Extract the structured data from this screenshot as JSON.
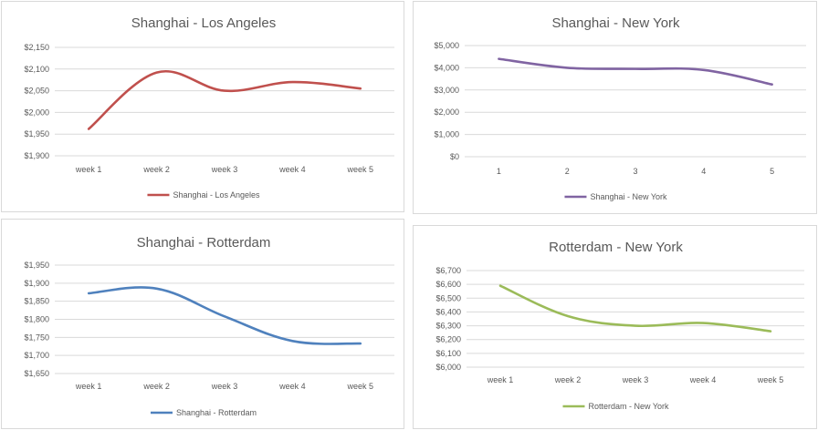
{
  "chart_data": [
    {
      "type": "line",
      "title": "Shanghai - Los Angeles",
      "categories": [
        "week 1",
        "week 2",
        "week 3",
        "week 4",
        "week 5"
      ],
      "series": [
        {
          "name": "Shanghai - Los Angeles",
          "values": [
            1962,
            2092,
            2050,
            2070,
            2055
          ],
          "color": "#c0504d"
        }
      ],
      "y_ticks": [
        "$1,900",
        "$1,950",
        "$2,000",
        "$2,050",
        "$2,100",
        "$2,150"
      ],
      "ylim": [
        1900,
        2150
      ],
      "grid": true,
      "legend": "bottom"
    },
    {
      "type": "line",
      "title": "Shanghai - New York",
      "categories": [
        "1",
        "2",
        "3",
        "4",
        "5"
      ],
      "series": [
        {
          "name": "Shanghai - New York",
          "values": [
            4400,
            4000,
            3950,
            3900,
            3250
          ],
          "color": "#8064a2"
        }
      ],
      "y_ticks": [
        "$0",
        "$1,000",
        "$2,000",
        "$3,000",
        "$4,000",
        "$5,000"
      ],
      "ylim": [
        0,
        5000
      ],
      "grid": true,
      "legend": "bottom"
    },
    {
      "type": "line",
      "title": "Shanghai - Rotterdam",
      "categories": [
        "week 1",
        "week 2",
        "week 3",
        "week 4",
        "week 5"
      ],
      "series": [
        {
          "name": "Shanghai - Rotterdam",
          "values": [
            1872,
            1885,
            1808,
            1740,
            1733
          ],
          "color": "#4f81bd"
        }
      ],
      "y_ticks": [
        "$1,650",
        "$1,700",
        "$1,750",
        "$1,800",
        "$1,850",
        "$1,900",
        "$1,950"
      ],
      "ylim": [
        1650,
        1950
      ],
      "grid": true,
      "legend": "bottom"
    },
    {
      "type": "line",
      "title": "Rotterdam - New York",
      "categories": [
        "week 1",
        "week 2",
        "week 3",
        "week 4",
        "week 5"
      ],
      "series": [
        {
          "name": "Rotterdam - New York",
          "values": [
            6590,
            6370,
            6300,
            6320,
            6260
          ],
          "color": "#9bbb59"
        }
      ],
      "y_ticks": [
        "$6,000",
        "$6,100",
        "$6,200",
        "$6,300",
        "$6,400",
        "$6,500",
        "$6,600",
        "$6,700"
      ],
      "ylim": [
        6000,
        6700
      ],
      "grid": true,
      "legend": "bottom"
    }
  ]
}
